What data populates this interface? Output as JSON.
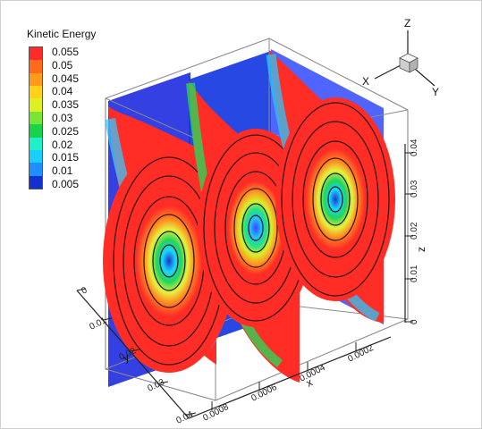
{
  "legend": {
    "title": "Kinetic Energy",
    "entries": [
      {
        "label": "0.055",
        "color": "#ff2a2a"
      },
      {
        "label": "0.05",
        "color": "#ff6a1b"
      },
      {
        "label": "0.045",
        "color": "#ff9a1a"
      },
      {
        "label": "0.04",
        "color": "#ffd21a"
      },
      {
        "label": "0.035",
        "color": "#dff022"
      },
      {
        "label": "0.03",
        "color": "#76e535"
      },
      {
        "label": "0.025",
        "color": "#18d44b"
      },
      {
        "label": "0.02",
        "color": "#1ff0c8"
      },
      {
        "label": "0.015",
        "color": "#18cfff"
      },
      {
        "label": "0.01",
        "color": "#1f8eff"
      },
      {
        "label": "0.005",
        "color": "#1231d0"
      }
    ]
  },
  "axes": {
    "x_title": "x",
    "y_title": "y",
    "z_title": "z",
    "x_ticks": [
      "0.0002",
      "0.0004",
      "0.0006",
      "0.0008"
    ],
    "y_ticks": [
      "0",
      "0.01",
      "0.02",
      "0.03",
      "0.04"
    ],
    "z_ticks": [
      "0",
      "0.01",
      "0.02",
      "0.03",
      "0.04"
    ]
  },
  "triad": {
    "x_label": "X",
    "y_label": "Y",
    "z_label": "Z"
  },
  "colors": {
    "background": "#ffffff",
    "box_line": "#8a8a8a",
    "axis_line": "#222222",
    "field_low": "#1f35c9",
    "field_high": "#ff2d26",
    "streamline": "#2b1111"
  }
}
